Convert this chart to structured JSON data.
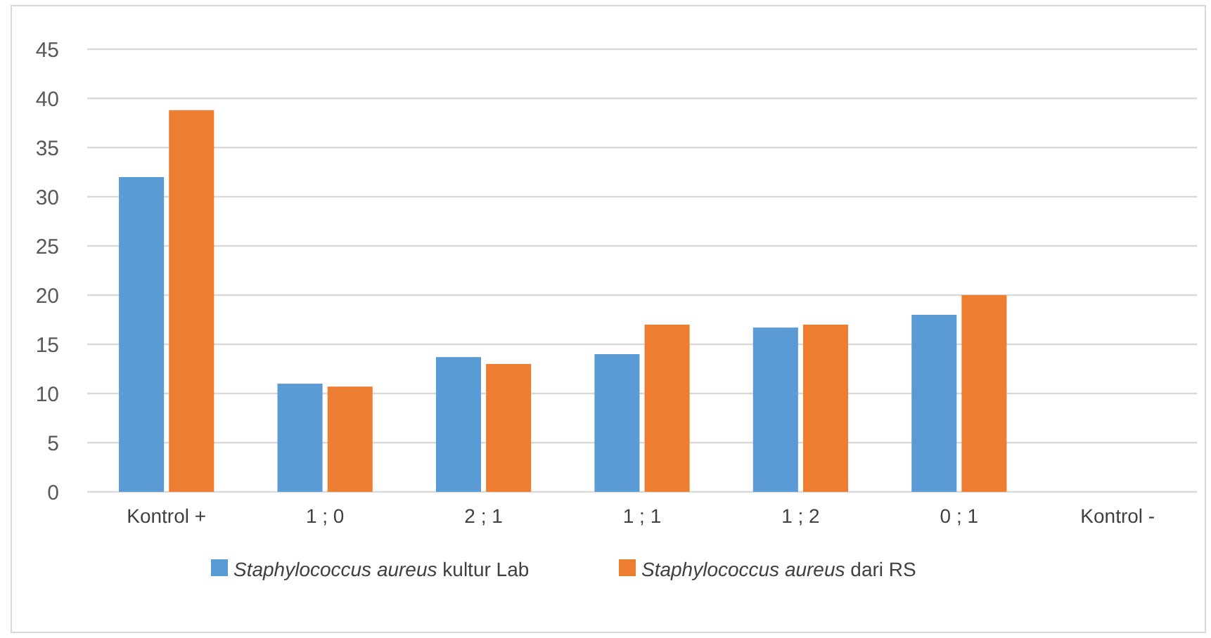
{
  "chart_data": {
    "type": "bar",
    "categories": [
      "Kontrol +",
      "1 ; 0",
      "2 ; 1",
      "1 ; 1",
      "1 ; 2",
      "0 ; 1",
      "Kontrol -"
    ],
    "series": [
      {
        "name": "Staphylococcus aureus kultur Lab",
        "color": "#5b9bd5",
        "values": [
          32,
          11,
          13.7,
          14,
          16.7,
          18,
          null
        ]
      },
      {
        "name": "Staphylococcus aureus dari RS",
        "color": "#ed7d31",
        "values": [
          38.8,
          10.7,
          13,
          17,
          17,
          20,
          null
        ]
      }
    ],
    "ylim": [
      0,
      45
    ],
    "yticks": [
      0,
      5,
      10,
      15,
      20,
      25,
      30,
      35,
      40,
      45
    ],
    "grid": "y",
    "legend": "bottom"
  }
}
